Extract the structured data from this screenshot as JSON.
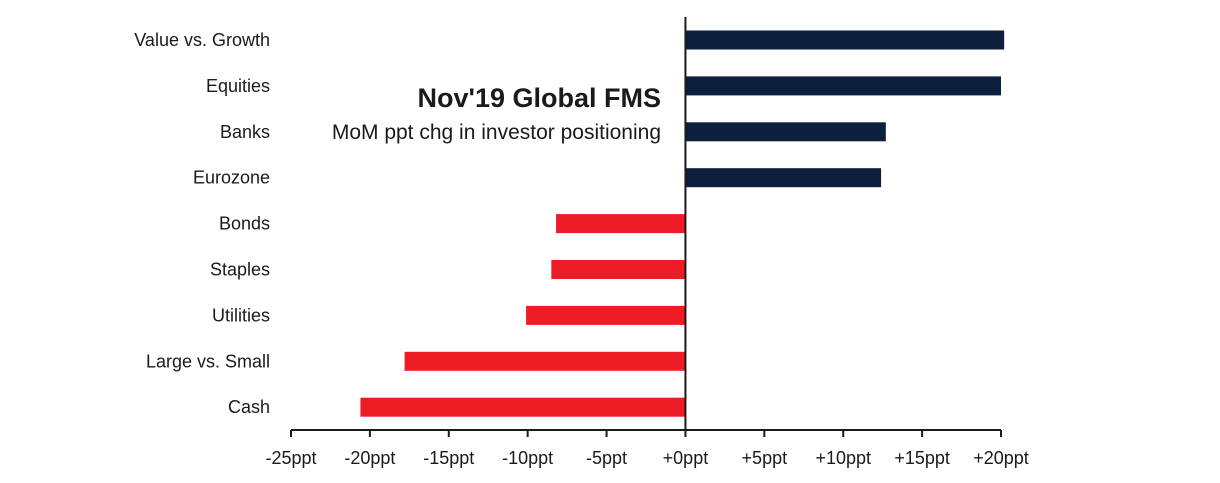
{
  "chart_data": {
    "type": "bar",
    "orientation": "horizontal",
    "title": "Nov'19 Global FMS",
    "subtitle": "MoM ppt chg in investor positioning",
    "categories": [
      "Value vs. Growth",
      "Equities",
      "Banks",
      "Eurozone",
      "Bonds",
      "Staples",
      "Utilities",
      "Large vs. Small",
      "Cash"
    ],
    "values": [
      20.2,
      20.0,
      12.7,
      12.4,
      -8.2,
      -8.5,
      -10.1,
      -17.8,
      -20.6
    ],
    "xlim": [
      -25,
      20
    ],
    "x_ticks": [
      -25,
      -20,
      -15,
      -10,
      -5,
      0,
      5,
      10,
      15,
      20
    ],
    "x_tick_labels": [
      "-25ppt",
      "-20ppt",
      "-15ppt",
      "-10ppt",
      "-5ppt",
      "+0ppt",
      "+5ppt",
      "+10ppt",
      "+15ppt",
      "+20ppt"
    ],
    "grid": false,
    "legend": "none",
    "colors": {
      "positive": "#0c1f3c",
      "negative": "#ee1c25",
      "axis": "#1a1a1a"
    }
  }
}
